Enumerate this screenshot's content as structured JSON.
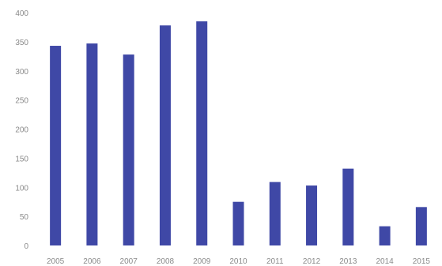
{
  "chart_data": {
    "type": "bar",
    "categories": [
      "2005",
      "2006",
      "2007",
      "2008",
      "2009",
      "2010",
      "2011",
      "2012",
      "2013",
      "2014",
      "2015"
    ],
    "values": [
      343,
      347,
      328,
      378,
      385,
      75,
      109,
      103,
      132,
      33,
      66
    ],
    "ylim": [
      0,
      400
    ],
    "yticks": [
      0,
      50,
      100,
      150,
      200,
      250,
      300,
      350,
      400
    ],
    "grid": false,
    "bar_color": "#3f48a6",
    "tick_color": "#8a8a8a",
    "title": "",
    "xlabel": "",
    "ylabel": ""
  }
}
